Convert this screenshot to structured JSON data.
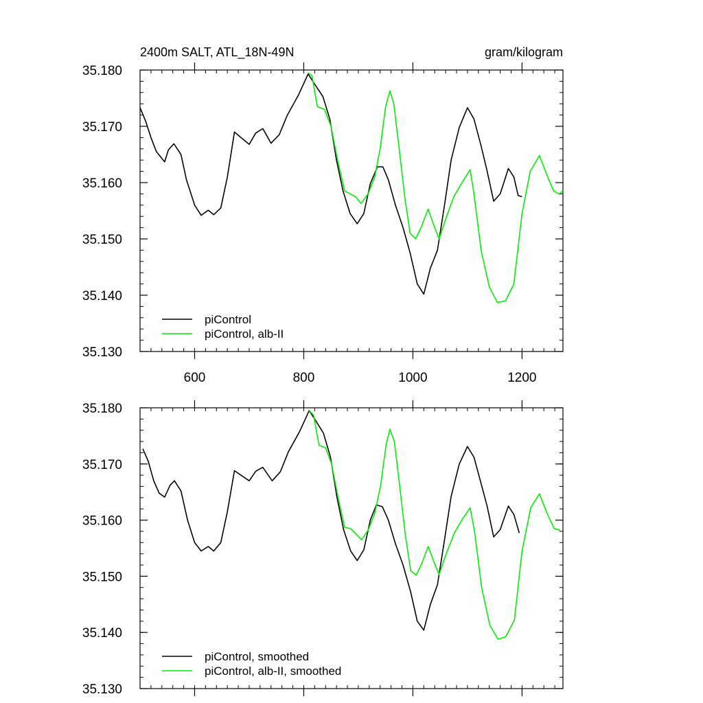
{
  "header": {
    "left_title": "2400m SALT, ATL_18N-49N",
    "right_title": "gram/kilogram"
  },
  "colors": {
    "control": "#000000",
    "alb": "#00ee00",
    "axis": "#000000"
  },
  "chart_data": [
    {
      "type": "line",
      "panel": "top",
      "xlim": [
        500,
        1275
      ],
      "ylim": [
        35.13,
        35.18
      ],
      "xticks": [
        600,
        800,
        1000,
        1200
      ],
      "xtick_labels": [
        "600",
        "800",
        "1000",
        "1200"
      ],
      "yticks": [
        35.13,
        35.14,
        35.15,
        35.16,
        35.17,
        35.18
      ],
      "ytick_labels": [
        "35.130",
        "35.140",
        "35.150",
        "35.160",
        "35.170",
        "35.180"
      ],
      "legend_position": "bottom-left",
      "series": [
        {
          "name": "piControl",
          "color": "#000000",
          "points": [
            [
              500,
              35.1733
            ],
            [
              510,
              35.171
            ],
            [
              520,
              35.168
            ],
            [
              530,
              35.1655
            ],
            [
              545,
              35.1637
            ],
            [
              552,
              35.1658
            ],
            [
              562,
              35.1669
            ],
            [
              575,
              35.165
            ],
            [
              585,
              35.1605
            ],
            [
              600,
              35.156
            ],
            [
              612,
              35.1542
            ],
            [
              625,
              35.1551
            ],
            [
              635,
              35.1543
            ],
            [
              648,
              35.1555
            ],
            [
              660,
              35.161
            ],
            [
              673,
              35.169
            ],
            [
              685,
              35.168
            ],
            [
              700,
              35.1668
            ],
            [
              712,
              35.1688
            ],
            [
              725,
              35.1696
            ],
            [
              740,
              35.167
            ],
            [
              755,
              35.1685
            ],
            [
              770,
              35.172
            ],
            [
              790,
              35.1755
            ],
            [
              808,
              35.1793
            ],
            [
              820,
              35.1775
            ],
            [
              835,
              35.1753
            ],
            [
              848,
              35.1712
            ],
            [
              860,
              35.164
            ],
            [
              872,
              35.1585
            ],
            [
              885,
              35.1545
            ],
            [
              898,
              35.1527
            ],
            [
              910,
              35.1545
            ],
            [
              922,
              35.1598
            ],
            [
              935,
              35.1628
            ],
            [
              945,
              35.1628
            ],
            [
              955,
              35.1605
            ],
            [
              968,
              35.156
            ],
            [
              982,
              35.152
            ],
            [
              995,
              35.1475
            ],
            [
              1008,
              35.142
            ],
            [
              1020,
              35.1402
            ],
            [
              1032,
              35.1448
            ],
            [
              1045,
              35.148
            ],
            [
              1058,
              35.156
            ],
            [
              1070,
              35.164
            ],
            [
              1085,
              35.1698
            ],
            [
              1100,
              35.1733
            ],
            [
              1112,
              35.1713
            ],
            [
              1125,
              35.1665
            ],
            [
              1135,
              35.1625
            ],
            [
              1148,
              35.1567
            ],
            [
              1160,
              35.158
            ],
            [
              1175,
              35.1625
            ],
            [
              1185,
              35.161
            ],
            [
              1193,
              35.1577
            ],
            [
              1200,
              35.1575
            ]
          ]
        },
        {
          "name": "piControl, alb-II",
          "color": "#00ee00",
          "points": [
            [
              808,
              35.1795
            ],
            [
              815,
              35.179
            ],
            [
              825,
              35.1735
            ],
            [
              838,
              35.173
            ],
            [
              850,
              35.17
            ],
            [
              862,
              35.164
            ],
            [
              875,
              35.1585
            ],
            [
              885,
              35.158
            ],
            [
              895,
              35.1575
            ],
            [
              905,
              35.1563
            ],
            [
              918,
              35.158
            ],
            [
              930,
              35.161
            ],
            [
              940,
              35.166
            ],
            [
              950,
              35.1735
            ],
            [
              958,
              35.1763
            ],
            [
              965,
              35.174
            ],
            [
              975,
              35.166
            ],
            [
              985,
              35.1575
            ],
            [
              995,
              35.151
            ],
            [
              1005,
              35.15
            ],
            [
              1015,
              35.152
            ],
            [
              1028,
              35.1553
            ],
            [
              1040,
              35.152
            ],
            [
              1048,
              35.15
            ],
            [
              1060,
              35.1535
            ],
            [
              1075,
              35.1575
            ],
            [
              1090,
              35.16
            ],
            [
              1105,
              35.1623
            ],
            [
              1112,
              35.158
            ],
            [
              1125,
              35.148
            ],
            [
              1140,
              35.1415
            ],
            [
              1155,
              35.1387
            ],
            [
              1170,
              35.139
            ],
            [
              1185,
              35.142
            ],
            [
              1200,
              35.1545
            ],
            [
              1215,
              35.162
            ],
            [
              1232,
              35.1648
            ],
            [
              1245,
              35.1615
            ],
            [
              1258,
              35.1585
            ],
            [
              1268,
              35.158
            ],
            [
              1275,
              35.1585
            ]
          ]
        }
      ]
    },
    {
      "type": "line",
      "panel": "bottom",
      "xlim": [
        500,
        1275
      ],
      "ylim": [
        35.13,
        35.18
      ],
      "xticks": [
        600,
        800,
        1000,
        1200
      ],
      "xtick_labels": [],
      "yticks": [
        35.13,
        35.14,
        35.15,
        35.16,
        35.17,
        35.18
      ],
      "ytick_labels": [
        "35.130",
        "35.140",
        "35.150",
        "35.160",
        "35.170",
        "35.180"
      ],
      "legend_position": "bottom-left",
      "series": [
        {
          "name": "piControl, smoothed",
          "color": "#000000",
          "points": [
            [
              505,
              35.1727
            ],
            [
              515,
              35.1705
            ],
            [
              525,
              35.167
            ],
            [
              535,
              35.1648
            ],
            [
              545,
              35.1641
            ],
            [
              555,
              35.1662
            ],
            [
              563,
              35.167
            ],
            [
              575,
              35.1652
            ],
            [
              587,
              35.16
            ],
            [
              600,
              35.156
            ],
            [
              612,
              35.1545
            ],
            [
              625,
              35.1553
            ],
            [
              635,
              35.1545
            ],
            [
              648,
              35.156
            ],
            [
              660,
              35.1615
            ],
            [
              673,
              35.1688
            ],
            [
              685,
              35.168
            ],
            [
              700,
              35.167
            ],
            [
              712,
              35.1687
            ],
            [
              725,
              35.1694
            ],
            [
              742,
              35.167
            ],
            [
              757,
              35.1686
            ],
            [
              772,
              35.1722
            ],
            [
              792,
              35.1757
            ],
            [
              810,
              35.1795
            ],
            [
              822,
              35.1777
            ],
            [
              836,
              35.1755
            ],
            [
              849,
              35.1712
            ],
            [
              861,
              35.164
            ],
            [
              873,
              35.1583
            ],
            [
              886,
              35.1545
            ],
            [
              898,
              35.1528
            ],
            [
              910,
              35.1547
            ],
            [
              922,
              35.16
            ],
            [
              933,
              35.1627
            ],
            [
              944,
              35.1624
            ],
            [
              955,
              35.16
            ],
            [
              968,
              35.1558
            ],
            [
              982,
              35.152
            ],
            [
              996,
              35.1472
            ],
            [
              1008,
              35.142
            ],
            [
              1020,
              35.1404
            ],
            [
              1032,
              35.145
            ],
            [
              1045,
              35.1485
            ],
            [
              1058,
              35.1565
            ],
            [
              1070,
              35.1642
            ],
            [
              1085,
              35.17
            ],
            [
              1100,
              35.1731
            ],
            [
              1112,
              35.1712
            ],
            [
              1125,
              35.1665
            ],
            [
              1136,
              35.1625
            ],
            [
              1148,
              35.157
            ],
            [
              1160,
              35.1583
            ],
            [
              1175,
              35.1625
            ],
            [
              1185,
              35.161
            ],
            [
              1195,
              35.1577
            ]
          ]
        },
        {
          "name": "piControl, alb-II, smoothed",
          "color": "#00ee00",
          "points": [
            [
              810,
              35.1795
            ],
            [
              818,
              35.1787
            ],
            [
              828,
              35.1733
            ],
            [
              840,
              35.1729
            ],
            [
              851,
              35.17
            ],
            [
              863,
              35.164
            ],
            [
              875,
              35.1587
            ],
            [
              886,
              35.1585
            ],
            [
              896,
              35.1575
            ],
            [
              906,
              35.1565
            ],
            [
              918,
              35.1582
            ],
            [
              930,
              35.1612
            ],
            [
              941,
              35.1662
            ],
            [
              951,
              35.1735
            ],
            [
              958,
              35.1762
            ],
            [
              966,
              35.174
            ],
            [
              976,
              35.166
            ],
            [
              986,
              35.1575
            ],
            [
              996,
              35.151
            ],
            [
              1006,
              35.1502
            ],
            [
              1016,
              35.1522
            ],
            [
              1028,
              35.1553
            ],
            [
              1040,
              35.1522
            ],
            [
              1048,
              35.1503
            ],
            [
              1060,
              35.1537
            ],
            [
              1076,
              35.1577
            ],
            [
              1091,
              35.1602
            ],
            [
              1105,
              35.1622
            ],
            [
              1113,
              35.158
            ],
            [
              1126,
              35.148
            ],
            [
              1141,
              35.1413
            ],
            [
              1156,
              35.1388
            ],
            [
              1170,
              35.1392
            ],
            [
              1186,
              35.1422
            ],
            [
              1200,
              35.1545
            ],
            [
              1216,
              35.1622
            ],
            [
              1232,
              35.1647
            ],
            [
              1246,
              35.1612
            ],
            [
              1259,
              35.1585
            ],
            [
              1270,
              35.1582
            ]
          ]
        }
      ]
    }
  ]
}
